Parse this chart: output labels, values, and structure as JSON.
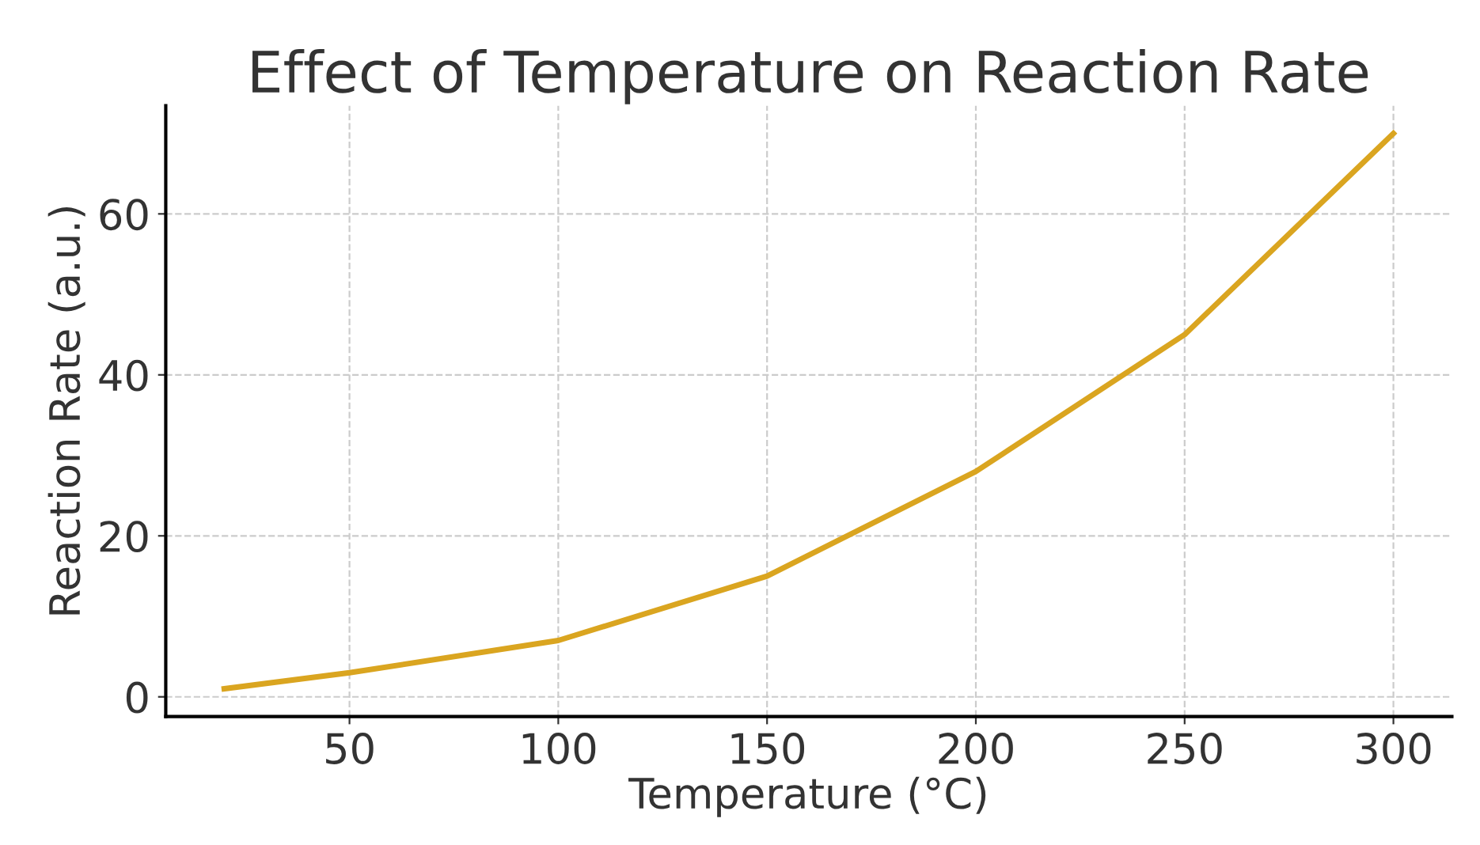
{
  "chart_data": {
    "type": "line",
    "title": "Effect of Temperature on Reaction Rate",
    "xlabel": "Temperature (°C)",
    "ylabel": "Reaction Rate (a.u.)",
    "x": [
      20,
      50,
      100,
      150,
      200,
      250,
      300
    ],
    "series": [
      {
        "color": "#daa520",
        "values": [
          1,
          3,
          7,
          15,
          28,
          45,
          70
        ]
      }
    ],
    "xlim": [
      6,
      314
    ],
    "ylim": [
      -2.45,
      73.45
    ],
    "xticks": [
      50,
      100,
      150,
      200,
      250,
      300
    ],
    "yticks": [
      0,
      20,
      40,
      60
    ],
    "grid": true,
    "marker": "none",
    "line_style": "solid"
  }
}
